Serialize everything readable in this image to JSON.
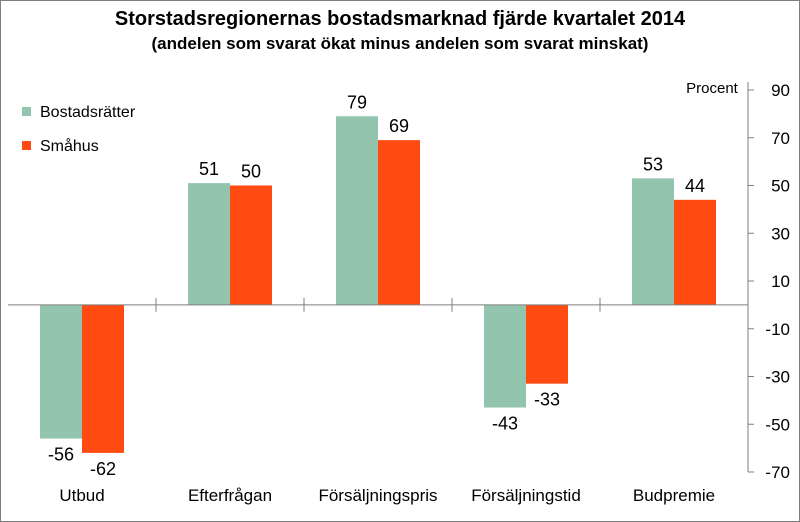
{
  "chart_data": {
    "type": "bar",
    "title": "Storstadsregionernas bostadsmarknad fjärde kvartalet  2014",
    "subtitle": "(andelen som svarat ökat minus andelen som svarat minskat)",
    "ylabel": "Procent",
    "ylim": [
      -70,
      90
    ],
    "yticks": [
      90,
      70,
      50,
      30,
      10,
      -10,
      -30,
      -50,
      -70
    ],
    "y_axis_side": "right",
    "grid": "vertical category separators",
    "legend_position": "top-left",
    "categories": [
      "Utbud",
      "Efterfrågan",
      "Försäljningspris",
      "Försäljningstid",
      "Budpremie"
    ],
    "series": [
      {
        "name": "Bostadsrätter",
        "color": "#93c5ae",
        "values": [
          -56,
          51,
          79,
          -43,
          53
        ]
      },
      {
        "name": "Småhus",
        "color": "#ff4a12",
        "values": [
          -62,
          50,
          69,
          -33,
          44
        ]
      }
    ]
  }
}
